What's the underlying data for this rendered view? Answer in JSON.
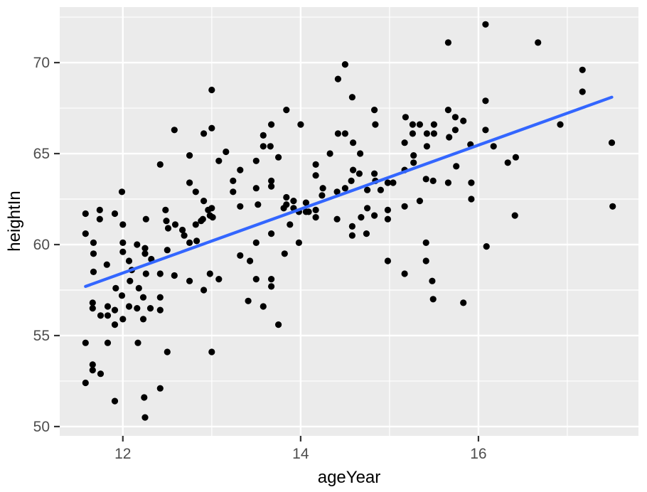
{
  "chart_data": {
    "type": "scatter",
    "title": "",
    "xlabel": "ageYear",
    "ylabel": "heightIn",
    "legend_position": "none",
    "x_axis": {
      "ticks": [
        12,
        14,
        16
      ],
      "minor_breaks": [
        13,
        15,
        17
      ],
      "range": [
        11.29,
        17.8
      ]
    },
    "y_axis": {
      "ticks": [
        50,
        55,
        60,
        65,
        70
      ],
      "minor_breaks": [
        52.5,
        57.5,
        62.5,
        67.5,
        72.5
      ],
      "range": [
        49.49,
        73.05
      ]
    },
    "grid": "white major and minor gridlines on gray panel",
    "trend_line": {
      "model": "linear",
      "x": [
        11.58,
        17.5
      ],
      "y": [
        57.7,
        68.1
      ]
    },
    "colors": {
      "panel_bg": "#EBEBEB",
      "grid": "#FFFFFF",
      "point": "#000000",
      "trend": "#3366FF",
      "tick_label": "#4D4D4D",
      "tick_mark": "#333333",
      "axis_title": "#000000",
      "outer_bg": "#FFFFFF"
    },
    "points": [
      [
        13.0,
        68.5
      ],
      [
        12.58,
        66.3
      ],
      [
        12.91,
        66.1
      ],
      [
        13.0,
        66.4
      ],
      [
        14.5,
        69.9
      ],
      [
        14.42,
        69.1
      ],
      [
        14.58,
        68.1
      ],
      [
        13.84,
        67.4
      ],
      [
        14.83,
        67.4
      ],
      [
        13.67,
        66.6
      ],
      [
        14.0,
        66.6
      ],
      [
        14.84,
        66.6
      ],
      [
        15.18,
        67.0
      ],
      [
        15.26,
        66.6
      ],
      [
        15.34,
        66.6
      ],
      [
        15.5,
        66.6
      ],
      [
        13.58,
        66.0
      ],
      [
        14.42,
        66.1
      ],
      [
        14.5,
        66.1
      ],
      [
        15.26,
        66.1
      ],
      [
        15.42,
        66.1
      ],
      [
        15.5,
        66.1
      ],
      [
        13.58,
        65.4
      ],
      [
        13.66,
        65.4
      ],
      [
        14.59,
        65.6
      ],
      [
        15.17,
        65.6
      ],
      [
        15.42,
        65.4
      ],
      [
        14.33,
        65.0
      ],
      [
        14.67,
        65.0
      ],
      [
        16.08,
        72.1
      ],
      [
        15.66,
        71.1
      ],
      [
        16.67,
        71.1
      ],
      [
        17.17,
        69.6
      ],
      [
        17.17,
        68.4
      ],
      [
        16.08,
        67.9
      ],
      [
        15.66,
        67.4
      ],
      [
        15.74,
        67.0
      ],
      [
        15.83,
        66.8
      ],
      [
        15.74,
        66.3
      ],
      [
        16.08,
        66.3
      ],
      [
        15.67,
        65.9
      ],
      [
        16.92,
        66.6
      ],
      [
        17.5,
        65.6
      ],
      [
        15.91,
        65.5
      ],
      [
        16.17,
        65.4
      ],
      [
        12.75,
        64.9
      ],
      [
        13.16,
        65.1
      ],
      [
        12.42,
        64.4
      ],
      [
        13.08,
        64.6
      ],
      [
        13.32,
        64.1
      ],
      [
        12.75,
        63.4
      ],
      [
        13.24,
        63.5
      ],
      [
        12.82,
        62.9
      ],
      [
        13.24,
        62.9
      ],
      [
        11.99,
        62.9
      ],
      [
        12.91,
        62.4
      ],
      [
        13.32,
        62.1
      ],
      [
        11.58,
        61.7
      ],
      [
        11.74,
        61.9
      ],
      [
        11.74,
        61.4
      ],
      [
        11.91,
        61.7
      ],
      [
        12.26,
        61.4
      ],
      [
        12.48,
        61.9
      ],
      [
        12.49,
        61.3
      ],
      [
        12.59,
        61.1
      ],
      [
        12.51,
        60.9
      ],
      [
        12.67,
        60.8
      ],
      [
        12.69,
        60.5
      ],
      [
        12.82,
        61.1
      ],
      [
        12.9,
        61.4
      ],
      [
        12.96,
        61.9
      ],
      [
        12.98,
        61.6
      ],
      [
        13.0,
        62.0
      ],
      [
        11.58,
        60.6
      ],
      [
        12.0,
        61.1
      ],
      [
        12.0,
        60.1
      ],
      [
        12.0,
        59.6
      ],
      [
        11.67,
        60.1
      ],
      [
        11.67,
        59.5
      ],
      [
        12.16,
        60.0
      ],
      [
        12.25,
        59.8
      ],
      [
        12.25,
        59.5
      ],
      [
        12.07,
        59.1
      ],
      [
        12.32,
        59.2
      ],
      [
        12.1,
        58.6
      ],
      [
        11.67,
        58.5
      ],
      [
        11.82,
        58.9
      ],
      [
        11.92,
        57.6
      ],
      [
        12.08,
        58.0
      ],
      [
        12.18,
        57.6
      ],
      [
        12.26,
        58.4
      ],
      [
        12.42,
        58.4
      ],
      [
        12.58,
        58.3
      ],
      [
        12.75,
        58.0
      ],
      [
        12.91,
        57.5
      ],
      [
        12.5,
        59.7
      ],
      [
        12.75,
        60.1
      ],
      [
        12.83,
        60.2
      ],
      [
        13.08,
        58.1
      ],
      [
        13.32,
        59.4
      ],
      [
        13.43,
        59.1
      ],
      [
        12.98,
        58.4
      ],
      [
        12.88,
        61.3
      ],
      [
        13.01,
        61.5
      ],
      [
        13.5,
        64.6
      ],
      [
        13.75,
        64.8
      ],
      [
        15.27,
        64.9
      ],
      [
        15.27,
        64.5
      ],
      [
        14.17,
        64.4
      ],
      [
        14.17,
        63.8
      ],
      [
        14.59,
        64.1
      ],
      [
        14.66,
        63.9
      ],
      [
        14.83,
        63.9
      ],
      [
        14.84,
        63.5
      ],
      [
        14.57,
        63.5
      ],
      [
        13.67,
        63.5
      ],
      [
        13.67,
        63.2
      ],
      [
        13.5,
        63.1
      ],
      [
        14.25,
        63.1
      ],
      [
        14.24,
        62.7
      ],
      [
        14.41,
        62.9
      ],
      [
        14.5,
        63.1
      ],
      [
        14.75,
        63.0
      ],
      [
        14.9,
        63.0
      ],
      [
        14.98,
        63.4
      ],
      [
        15.04,
        63.4
      ],
      [
        13.84,
        62.6
      ],
      [
        13.84,
        62.2
      ],
      [
        13.92,
        62.4
      ],
      [
        13.92,
        62.0
      ],
      [
        13.81,
        62.0
      ],
      [
        14.06,
        62.3
      ],
      [
        14.06,
        61.8
      ],
      [
        13.98,
        61.8
      ],
      [
        14.09,
        61.8
      ],
      [
        14.17,
        61.9
      ],
      [
        14.17,
        61.5
      ],
      [
        14.41,
        61.4
      ],
      [
        13.88,
        61.1
      ],
      [
        13.67,
        60.6
      ],
      [
        13.5,
        60.1
      ],
      [
        13.98,
        60.1
      ],
      [
        13.82,
        59.5
      ],
      [
        14.58,
        61.0
      ],
      [
        14.58,
        60.5
      ],
      [
        14.74,
        60.6
      ],
      [
        14.68,
        61.5
      ],
      [
        14.75,
        62.0
      ],
      [
        14.83,
        61.6
      ],
      [
        14.98,
        61.9
      ],
      [
        14.98,
        61.4
      ],
      [
        15.17,
        62.1
      ],
      [
        15.34,
        62.4
      ],
      [
        14.98,
        59.1
      ],
      [
        15.17,
        58.4
      ],
      [
        15.41,
        60.1
      ],
      [
        15.41,
        59.1
      ],
      [
        15.48,
        58.0
      ],
      [
        13.5,
        58.1
      ],
      [
        13.67,
        58.1
      ],
      [
        13.67,
        57.7
      ],
      [
        15.41,
        63.6
      ],
      [
        15.49,
        63.5
      ],
      [
        15.17,
        64.1
      ],
      [
        13.52,
        62.2
      ],
      [
        15.75,
        64.3
      ],
      [
        16.33,
        64.5
      ],
      [
        16.42,
        64.8
      ],
      [
        15.66,
        63.4
      ],
      [
        15.92,
        63.4
      ],
      [
        15.92,
        62.5
      ],
      [
        16.41,
        61.6
      ],
      [
        17.51,
        62.1
      ],
      [
        16.09,
        59.9
      ],
      [
        11.66,
        56.8
      ],
      [
        11.66,
        56.5
      ],
      [
        11.83,
        56.6
      ],
      [
        11.91,
        56.4
      ],
      [
        11.75,
        56.1
      ],
      [
        11.83,
        56.1
      ],
      [
        11.99,
        57.2
      ],
      [
        12.0,
        55.9
      ],
      [
        11.91,
        55.6
      ],
      [
        12.07,
        56.6
      ],
      [
        12.23,
        57.1
      ],
      [
        12.23,
        55.9
      ],
      [
        12.16,
        56.5
      ],
      [
        12.31,
        56.5
      ],
      [
        12.42,
        57.1
      ],
      [
        12.42,
        56.4
      ],
      [
        13.41,
        56.9
      ],
      [
        11.58,
        54.6
      ],
      [
        11.83,
        54.6
      ],
      [
        12.17,
        54.6
      ],
      [
        12.5,
        54.1
      ],
      [
        13.0,
        54.1
      ],
      [
        11.66,
        53.4
      ],
      [
        11.66,
        53.1
      ],
      [
        11.75,
        52.9
      ],
      [
        11.58,
        52.4
      ],
      [
        12.42,
        52.1
      ],
      [
        11.91,
        51.4
      ],
      [
        12.24,
        51.6
      ],
      [
        12.25,
        50.5
      ],
      [
        13.58,
        56.6
      ],
      [
        13.75,
        55.6
      ],
      [
        15.49,
        57.0
      ],
      [
        15.83,
        56.8
      ]
    ]
  }
}
